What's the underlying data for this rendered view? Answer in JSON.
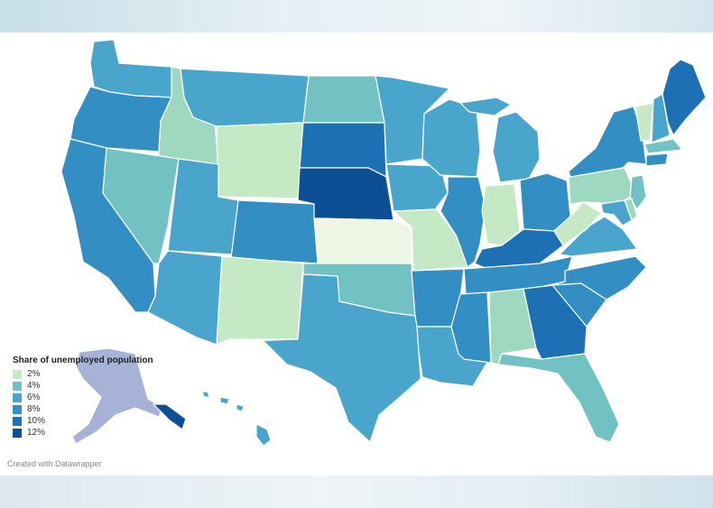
{
  "legend": {
    "title": "Share of unemployed population",
    "items": [
      {
        "label": "2%",
        "color": "#c5e8c5"
      },
      {
        "label": "4%",
        "color": "#72c2c4"
      },
      {
        "label": "6%",
        "color": "#4aa5cc"
      },
      {
        "label": "8%",
        "color": "#338ec4"
      },
      {
        "label": "10%",
        "color": "#1d70b4"
      },
      {
        "label": "12%",
        "color": "#0d4f95"
      }
    ]
  },
  "colors": {
    "kansas": "#eef6e6",
    "green_light": "#c5e8c5",
    "green_teal": "#9fd8c0",
    "teal": "#72c2c4",
    "blue_mid": "#4aa5cc",
    "blue": "#338ec4",
    "blue_dark": "#1d70b4",
    "navy": "#0d4f95",
    "alaska": "#a7b3d6",
    "border": "#ffffff"
  },
  "states": [
    {
      "name": "washington",
      "shade": "blue_mid"
    },
    {
      "name": "oregon",
      "shade": "blue"
    },
    {
      "name": "california",
      "shade": "blue"
    },
    {
      "name": "idaho",
      "shade": "green_teal"
    },
    {
      "name": "nevada",
      "shade": "teal"
    },
    {
      "name": "montana",
      "shade": "blue_mid"
    },
    {
      "name": "wyoming",
      "shade": "green_light"
    },
    {
      "name": "utah",
      "shade": "blue_mid"
    },
    {
      "name": "arizona",
      "shade": "blue_mid"
    },
    {
      "name": "colorado",
      "shade": "blue"
    },
    {
      "name": "new-mexico",
      "shade": "green_light"
    },
    {
      "name": "north-dakota",
      "shade": "teal"
    },
    {
      "name": "south-dakota",
      "shade": "blue_dark"
    },
    {
      "name": "nebraska",
      "shade": "navy"
    },
    {
      "name": "kansas",
      "shade": "kansas"
    },
    {
      "name": "oklahoma",
      "shade": "teal"
    },
    {
      "name": "texas",
      "shade": "blue_mid"
    },
    {
      "name": "minnesota",
      "shade": "blue_mid"
    },
    {
      "name": "iowa",
      "shade": "blue_mid"
    },
    {
      "name": "missouri",
      "shade": "green_light"
    },
    {
      "name": "arkansas",
      "shade": "blue"
    },
    {
      "name": "louisiana",
      "shade": "blue_mid"
    },
    {
      "name": "wisconsin",
      "shade": "blue_mid"
    },
    {
      "name": "illinois",
      "shade": "blue"
    },
    {
      "name": "michigan",
      "shade": "blue_mid"
    },
    {
      "name": "indiana",
      "shade": "green_light"
    },
    {
      "name": "ohio",
      "shade": "blue"
    },
    {
      "name": "kentucky",
      "shade": "blue_dark"
    },
    {
      "name": "tennessee",
      "shade": "blue"
    },
    {
      "name": "mississippi",
      "shade": "blue"
    },
    {
      "name": "alabama",
      "shade": "green_teal"
    },
    {
      "name": "georgia",
      "shade": "blue_dark"
    },
    {
      "name": "florida",
      "shade": "teal"
    },
    {
      "name": "south-carolina",
      "shade": "blue"
    },
    {
      "name": "north-carolina",
      "shade": "blue"
    },
    {
      "name": "virginia",
      "shade": "blue_mid"
    },
    {
      "name": "west-virginia",
      "shade": "green_light"
    },
    {
      "name": "pennsylvania",
      "shade": "green_teal"
    },
    {
      "name": "new-york",
      "shade": "blue"
    },
    {
      "name": "vermont",
      "shade": "green_light"
    },
    {
      "name": "new-hampshire",
      "shade": "blue_mid"
    },
    {
      "name": "maine",
      "shade": "blue_dark"
    },
    {
      "name": "massachusetts",
      "shade": "teal"
    },
    {
      "name": "connecticut",
      "shade": "blue"
    },
    {
      "name": "new-jersey",
      "shade": "teal"
    },
    {
      "name": "maryland",
      "shade": "blue_mid"
    },
    {
      "name": "delaware",
      "shade": "green_teal"
    },
    {
      "name": "alaska",
      "shade": "alaska"
    },
    {
      "name": "alaska-highlight",
      "shade": "navy"
    },
    {
      "name": "hawaii",
      "shade": "blue_mid"
    }
  ],
  "credit": "Created with Datawrapper"
}
